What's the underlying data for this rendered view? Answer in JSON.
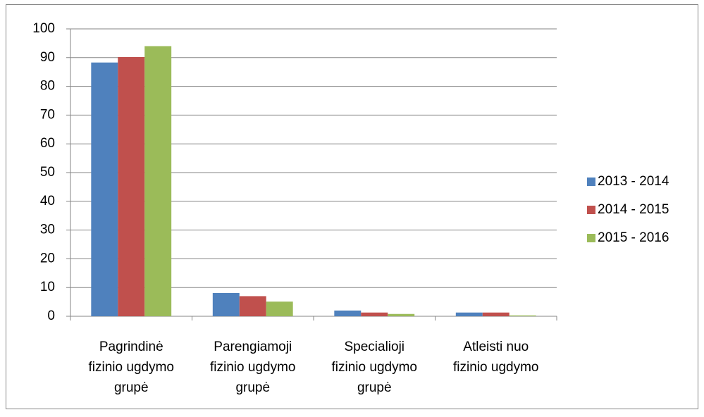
{
  "chart_data": {
    "type": "bar",
    "categories": [
      "Pagrindinė\nfizinio ugdymo\ngrupė",
      "Parengiamoji\nfizinio ugdymo\ngrupė",
      "Specialioji\nfizinio ugdymo\ngrupė",
      "Atleisti nuo\nfizinio ugdymo"
    ],
    "series": [
      {
        "name": "2013 - 2014",
        "color": "#4f81bd",
        "values": [
          88.3,
          8.1,
          2.0,
          1.3
        ]
      },
      {
        "name": "2014 - 2015",
        "color": "#c0504d",
        "values": [
          90.2,
          7.0,
          1.3,
          1.3
        ]
      },
      {
        "name": "2015 - 2016",
        "color": "#9bbb59",
        "values": [
          94.0,
          5.1,
          0.8,
          0.3
        ]
      }
    ],
    "ylim": [
      0,
      100
    ],
    "yticks": [
      0,
      10,
      20,
      30,
      40,
      50,
      60,
      70,
      80,
      90,
      100
    ],
    "grid": true,
    "legend": "right"
  }
}
